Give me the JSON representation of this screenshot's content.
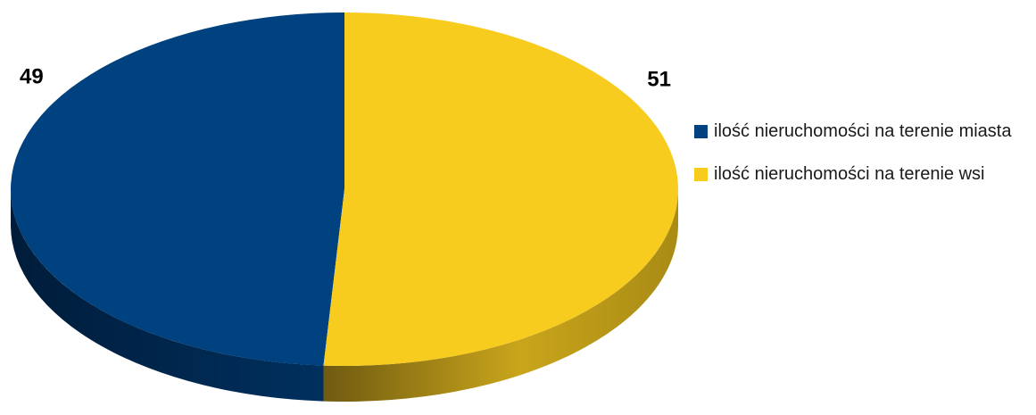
{
  "chart_data": {
    "type": "pie",
    "title": "",
    "categories": [
      "ilość nieruchomości na terenie miasta",
      "ilość nieruchomości na terenie wsi"
    ],
    "values": [
      49,
      51
    ],
    "data_labels": [
      "49",
      "51"
    ],
    "colors": [
      "#00417f",
      "#f7cc1f"
    ],
    "legend_position": "right",
    "style": "3d"
  },
  "legend": {
    "items": [
      {
        "label": "ilość nieruchomości na terenie miasta",
        "color": "#00417f"
      },
      {
        "label": "ilość nieruchomości na terenie wsi",
        "color": "#f7cc1f"
      }
    ]
  }
}
